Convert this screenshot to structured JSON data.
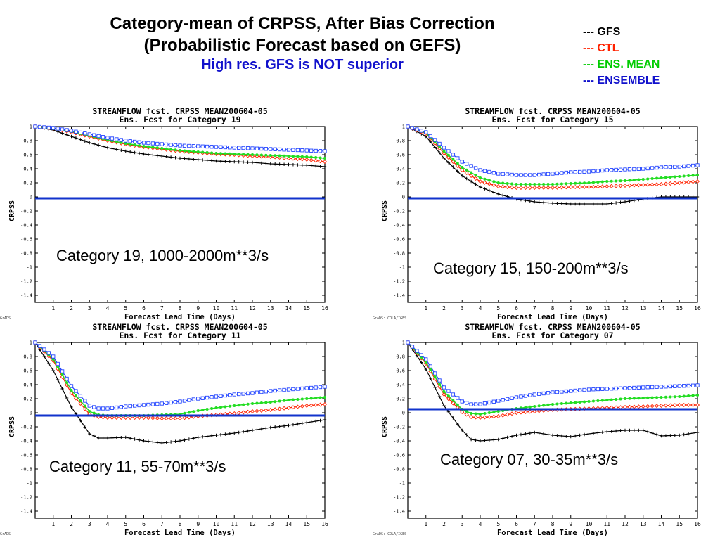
{
  "slide": {
    "title_line1": "Category-mean of CRPSS, After Bias Correction",
    "title_line2": "(Probabilistic Forecast based on GEFS)",
    "subtitle": "High res. GFS is NOT superior"
  },
  "legend": [
    {
      "label": "--- GFS",
      "color": "#000000"
    },
    {
      "label": "--- CTL",
      "color": "#ff2200"
    },
    {
      "label": "--- ENS. MEAN",
      "color": "#00cc00"
    },
    {
      "label": "--- ENSEMBLE",
      "color": "#1111cc"
    }
  ],
  "colors": {
    "GFS": "#000000",
    "CTL": "#ff2200",
    "ENS_MEAN": "#22dd22",
    "ENSEMBLE": "#2244ff",
    "zero_line": "#1133cc"
  },
  "chart_data": [
    {
      "type": "line",
      "title": "STREAMFLOW fcst. CRPSS MEAN200604-05",
      "subtitle": "Ens. Fcst for Category 19",
      "caption": "Category 19,  1000-2000m**3/s",
      "xlabel": "Forecast Lead Time (Days)",
      "ylabel": "CRPSS",
      "credit": "GrADS",
      "xlim": [
        0,
        16
      ],
      "ylim": [
        -1.5,
        1
      ],
      "xticks": [
        "1",
        "2",
        "3",
        "4",
        "5",
        "6",
        "7",
        "8",
        "9",
        "10",
        "11",
        "12",
        "13",
        "14",
        "15",
        "16"
      ],
      "yticks": [
        "1",
        "0.8",
        "0.6",
        "0.4",
        "0.2",
        "0",
        "-0.2",
        "-0.4",
        "-0.6",
        "-0.8",
        "-1",
        "-1.2",
        "-1.4"
      ],
      "reference_line": -0.02,
      "x": [
        0,
        1,
        2,
        3,
        4,
        5,
        6,
        7,
        8,
        9,
        10,
        11,
        12,
        13,
        14,
        15,
        16
      ],
      "series": [
        {
          "name": "GFS",
          "values": [
            1.0,
            0.95,
            0.86,
            0.77,
            0.7,
            0.65,
            0.61,
            0.58,
            0.55,
            0.53,
            0.51,
            0.5,
            0.49,
            0.47,
            0.46,
            0.45,
            0.43
          ]
        },
        {
          "name": "CTL",
          "values": [
            1.0,
            0.97,
            0.92,
            0.86,
            0.8,
            0.75,
            0.71,
            0.68,
            0.65,
            0.63,
            0.61,
            0.6,
            0.58,
            0.57,
            0.55,
            0.53,
            0.5
          ]
        },
        {
          "name": "ENS. MEAN",
          "values": [
            1.0,
            0.97,
            0.93,
            0.87,
            0.81,
            0.76,
            0.72,
            0.69,
            0.66,
            0.64,
            0.62,
            0.61,
            0.6,
            0.59,
            0.58,
            0.57,
            0.55
          ]
        },
        {
          "name": "ENSEMBLE",
          "values": [
            1.0,
            0.98,
            0.94,
            0.89,
            0.84,
            0.8,
            0.77,
            0.75,
            0.73,
            0.72,
            0.71,
            0.7,
            0.69,
            0.68,
            0.67,
            0.66,
            0.65
          ]
        }
      ]
    },
    {
      "type": "line",
      "title": "STREAMFLOW fcst. CRPSS MEAN200604-05",
      "subtitle": "Ens. Fcst for Category 15",
      "caption": "Category 15, 150-200m**3/s",
      "xlabel": "Forecast Lead Time (Days)",
      "ylabel": "CRPSS",
      "credit": "GrADS: COLA/IGES",
      "xlim": [
        0,
        16
      ],
      "ylim": [
        -1.5,
        1
      ],
      "xticks": [
        "1",
        "2",
        "3",
        "4",
        "5",
        "6",
        "7",
        "8",
        "9",
        "10",
        "11",
        "12",
        "13",
        "14",
        "15",
        "16"
      ],
      "yticks": [
        "1",
        "0.8",
        "0.6",
        "0.4",
        "0.2",
        "0",
        "-0.2",
        "-0.4",
        "-0.6",
        "-0.8",
        "-1",
        "-1.2",
        "-1.4"
      ],
      "reference_line": -0.02,
      "x": [
        0,
        1,
        2,
        3,
        4,
        5,
        6,
        7,
        8,
        9,
        10,
        11,
        12,
        13,
        14,
        15,
        16
      ],
      "series": [
        {
          "name": "GFS",
          "values": [
            1.0,
            0.86,
            0.55,
            0.3,
            0.14,
            0.04,
            -0.03,
            -0.07,
            -0.09,
            -0.1,
            -0.1,
            -0.1,
            -0.07,
            -0.03,
            0.0,
            0.0,
            0.0
          ]
        },
        {
          "name": "CTL",
          "values": [
            1.0,
            0.9,
            0.62,
            0.38,
            0.22,
            0.15,
            0.13,
            0.13,
            0.13,
            0.14,
            0.14,
            0.15,
            0.16,
            0.17,
            0.18,
            0.2,
            0.22
          ]
        },
        {
          "name": "ENS. MEAN",
          "values": [
            1.0,
            0.91,
            0.65,
            0.42,
            0.27,
            0.2,
            0.18,
            0.18,
            0.18,
            0.19,
            0.2,
            0.22,
            0.23,
            0.25,
            0.27,
            0.29,
            0.31
          ]
        },
        {
          "name": "ENSEMBLE",
          "values": [
            1.0,
            0.92,
            0.7,
            0.5,
            0.38,
            0.33,
            0.31,
            0.31,
            0.33,
            0.35,
            0.36,
            0.38,
            0.39,
            0.4,
            0.42,
            0.43,
            0.45
          ]
        }
      ]
    },
    {
      "type": "line",
      "title": "STREAMFLOW fcst. CRPSS MEAN200604-05",
      "subtitle": "Ens. Fcst for Category 11",
      "caption": "Category 11, 55-70m**3/s",
      "xlabel": "Forecast Lead Time (Days)",
      "ylabel": "CRPSS",
      "credit": "GrADS",
      "xlim": [
        0,
        16
      ],
      "ylim": [
        -1.5,
        1
      ],
      "xticks": [
        "1",
        "2",
        "3",
        "4",
        "5",
        "6",
        "7",
        "8",
        "9",
        "10",
        "11",
        "12",
        "13",
        "14",
        "15",
        "16"
      ],
      "yticks": [
        "1",
        "0.8",
        "0.6",
        "0.4",
        "0.2",
        "0",
        "-0.2",
        "-0.4",
        "-0.6",
        "-0.8",
        "-1",
        "-1.2",
        "-1.4"
      ],
      "reference_line": -0.04,
      "x": [
        0,
        1,
        2,
        3,
        3.5,
        4,
        5,
        6,
        7,
        8,
        9,
        10,
        11,
        12,
        13,
        14,
        15,
        16
      ],
      "series": [
        {
          "name": "GFS",
          "values": [
            1.0,
            0.6,
            0.08,
            -0.3,
            -0.36,
            -0.36,
            -0.35,
            -0.4,
            -0.43,
            -0.4,
            -0.35,
            -0.32,
            -0.29,
            -0.25,
            -0.21,
            -0.18,
            -0.14,
            -0.1
          ]
        },
        {
          "name": "CTL",
          "values": [
            1.0,
            0.74,
            0.28,
            -0.02,
            -0.06,
            -0.07,
            -0.07,
            -0.07,
            -0.08,
            -0.08,
            -0.05,
            -0.03,
            -0.01,
            0.02,
            0.04,
            0.07,
            0.1,
            0.12
          ]
        },
        {
          "name": "ENS. MEAN",
          "values": [
            1.0,
            0.76,
            0.32,
            0.02,
            -0.03,
            -0.04,
            -0.04,
            -0.04,
            -0.03,
            -0.02,
            0.03,
            0.07,
            0.1,
            0.13,
            0.15,
            0.18,
            0.2,
            0.22
          ]
        },
        {
          "name": "ENSEMBLE",
          "values": [
            1.0,
            0.8,
            0.38,
            0.1,
            0.06,
            0.06,
            0.09,
            0.11,
            0.13,
            0.16,
            0.2,
            0.23,
            0.26,
            0.28,
            0.31,
            0.33,
            0.35,
            0.37
          ]
        }
      ]
    },
    {
      "type": "line",
      "title": "STREAMFLOW fcst. CRPSS MEAN200604-05",
      "subtitle": "Ens. Fcst for Category 07",
      "caption": "Category 07, 30-35m**3/s",
      "xlabel": "Forecast Lead Time (Days)",
      "ylabel": "CRPSS",
      "credit": "GrADS: COLA/IGES",
      "xlim": [
        0,
        16
      ],
      "ylim": [
        -1.5,
        1
      ],
      "xticks": [
        "1",
        "2",
        "3",
        "4",
        "5",
        "6",
        "7",
        "8",
        "9",
        "10",
        "11",
        "12",
        "13",
        "14",
        "15",
        "16"
      ],
      "yticks": [
        "1",
        "0.8",
        "0.6",
        "0.4",
        "0.2",
        "0",
        "-0.2",
        "-0.4",
        "-0.6",
        "-0.8",
        "-1",
        "-1.2",
        "-1.4"
      ],
      "reference_line": 0.05,
      "x": [
        0,
        1,
        2,
        3,
        3.5,
        4,
        5,
        6,
        7,
        8,
        9,
        10,
        11,
        12,
        13,
        14,
        15,
        16
      ],
      "series": [
        {
          "name": "GFS",
          "values": [
            1.0,
            0.62,
            0.1,
            -0.25,
            -0.38,
            -0.4,
            -0.38,
            -0.32,
            -0.28,
            -0.32,
            -0.34,
            -0.3,
            -0.27,
            -0.25,
            -0.25,
            -0.33,
            -0.32,
            -0.28
          ]
        },
        {
          "name": "CTL",
          "values": [
            1.0,
            0.7,
            0.26,
            0.01,
            -0.06,
            -0.07,
            -0.05,
            0.0,
            0.02,
            0.04,
            0.05,
            0.06,
            0.07,
            0.08,
            0.09,
            0.1,
            0.11,
            0.11
          ]
        },
        {
          "name": "ENS. MEAN",
          "values": [
            1.0,
            0.72,
            0.3,
            0.05,
            -0.01,
            -0.02,
            0.02,
            0.06,
            0.09,
            0.12,
            0.14,
            0.16,
            0.18,
            0.2,
            0.21,
            0.22,
            0.23,
            0.25
          ]
        },
        {
          "name": "ENSEMBLE",
          "values": [
            1.0,
            0.76,
            0.36,
            0.16,
            0.12,
            0.12,
            0.17,
            0.22,
            0.26,
            0.29,
            0.31,
            0.33,
            0.34,
            0.35,
            0.36,
            0.37,
            0.38,
            0.39
          ]
        }
      ]
    }
  ]
}
